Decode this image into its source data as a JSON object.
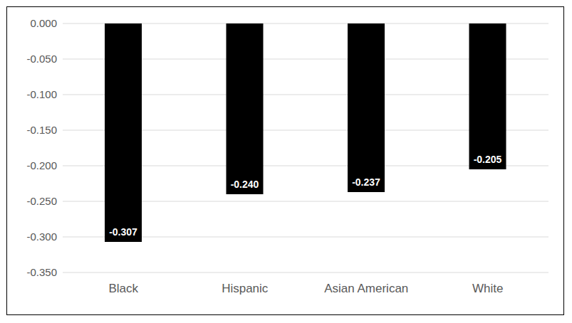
{
  "chart_data": {
    "type": "bar",
    "categories": [
      "Black",
      "Hispanic",
      "Asian American",
      "White"
    ],
    "values": [
      -0.307,
      -0.24,
      -0.237,
      -0.205
    ],
    "value_labels": [
      "-0.307",
      "-0.240",
      "-0.237",
      "-0.205"
    ],
    "color": "#000000",
    "ylim": [
      -0.35,
      0
    ],
    "yticks": [
      {
        "value": 0,
        "label": "0.000"
      },
      {
        "value": -0.05,
        "label": "-0.050"
      },
      {
        "value": -0.1,
        "label": "-0.100"
      },
      {
        "value": -0.15,
        "label": "-0.150"
      },
      {
        "value": -0.2,
        "label": "-0.200"
      },
      {
        "value": -0.25,
        "label": "-0.250"
      },
      {
        "value": -0.3,
        "label": "-0.300"
      },
      {
        "value": -0.35,
        "label": "-0.350"
      }
    ],
    "grid": true,
    "data_labels": true
  }
}
